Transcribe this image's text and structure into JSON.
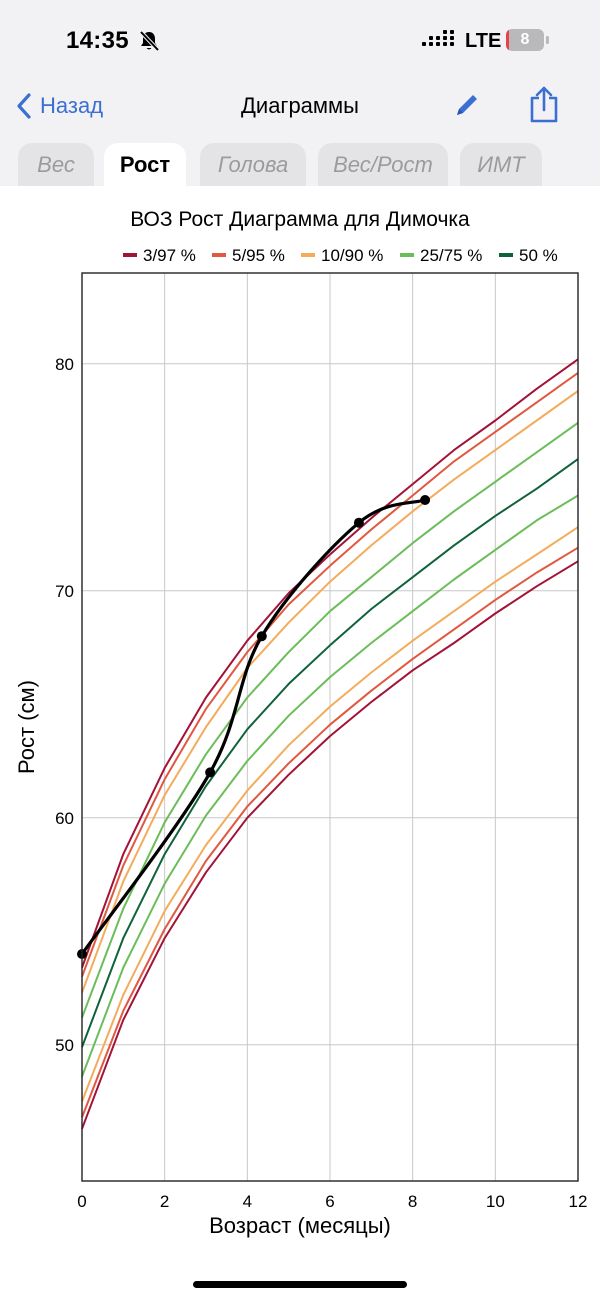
{
  "status_bar": {
    "time": "14:35",
    "network": "LTE",
    "battery_level": "8",
    "battery_fraction": 0.08,
    "battery_color": "#e8414a"
  },
  "nav": {
    "back_label": "Назад",
    "title": "Диаграммы",
    "accent_color": "#3b6fd4"
  },
  "tabs": [
    {
      "label": "Вес",
      "active": false
    },
    {
      "label": "Рост",
      "active": true
    },
    {
      "label": "Голова",
      "active": false
    },
    {
      "label": "Вес/Рост",
      "active": false
    },
    {
      "label": "ИМТ",
      "active": false
    }
  ],
  "chart_data": {
    "type": "line",
    "title": "ВОЗ Рост Диаграмма для Димочка",
    "xlabel": "Возраст (месяцы)",
    "ylabel": "Рост (см)",
    "xlim": [
      0,
      12
    ],
    "ylim": [
      44,
      84
    ],
    "xticks": [
      0,
      2,
      4,
      6,
      8,
      10,
      12
    ],
    "yticks": [
      50,
      60,
      70,
      80
    ],
    "grid": true,
    "legend_position": "top",
    "legend": [
      {
        "label": "3/97 %",
        "color": "#a31237"
      },
      {
        "label": "5/95 %",
        "color": "#e0583f"
      },
      {
        "label": "10/90 %",
        "color": "#f4ab5b"
      },
      {
        "label": "25/75 %",
        "color": "#6bbd5a"
      },
      {
        "label": "50 %",
        "color": "#10623a"
      }
    ],
    "x": [
      0,
      1,
      2,
      3,
      4,
      5,
      6,
      7,
      8,
      9,
      10,
      11,
      12
    ],
    "series": [
      {
        "name": "3 %",
        "color": "#a31237",
        "values": [
          46.3,
          51.1,
          54.7,
          57.6,
          60.0,
          61.9,
          63.6,
          65.1,
          66.5,
          67.7,
          69.0,
          70.2,
          71.3
        ]
      },
      {
        "name": "5 %",
        "color": "#e0583f",
        "values": [
          46.8,
          51.5,
          55.1,
          58.1,
          60.5,
          62.4,
          64.1,
          65.6,
          67.0,
          68.3,
          69.6,
          70.8,
          71.9
        ]
      },
      {
        "name": "10 %",
        "color": "#f4ab5b",
        "values": [
          47.5,
          52.2,
          55.9,
          58.8,
          61.2,
          63.2,
          64.9,
          66.4,
          67.8,
          69.1,
          70.4,
          71.6,
          72.8
        ]
      },
      {
        "name": "25 %",
        "color": "#6bbd5a",
        "values": [
          48.6,
          53.4,
          57.1,
          60.1,
          62.5,
          64.5,
          66.2,
          67.7,
          69.1,
          70.5,
          71.8,
          73.1,
          74.2
        ]
      },
      {
        "name": "50 %",
        "color": "#10623a",
        "values": [
          49.9,
          54.7,
          58.4,
          61.4,
          63.9,
          65.9,
          67.6,
          69.2,
          70.6,
          72.0,
          73.3,
          74.5,
          75.8
        ]
      },
      {
        "name": "75 %",
        "color": "#6bbd5a",
        "values": [
          51.2,
          56.0,
          59.8,
          62.8,
          65.3,
          67.3,
          69.1,
          70.6,
          72.1,
          73.5,
          74.8,
          76.1,
          77.4
        ]
      },
      {
        "name": "90 %",
        "color": "#f4ab5b",
        "values": [
          52.3,
          57.2,
          61.0,
          64.0,
          66.6,
          68.6,
          70.4,
          72.0,
          73.5,
          74.9,
          76.2,
          77.5,
          78.8
        ]
      },
      {
        "name": "95 %",
        "color": "#e0583f",
        "values": [
          53.0,
          57.9,
          61.7,
          64.8,
          67.3,
          69.4,
          71.1,
          72.7,
          74.2,
          75.7,
          77.0,
          78.3,
          79.6
        ]
      },
      {
        "name": "97 %",
        "color": "#a31237",
        "values": [
          53.4,
          58.4,
          62.2,
          65.3,
          67.8,
          69.9,
          71.6,
          73.2,
          74.7,
          76.2,
          77.5,
          78.9,
          80.2
        ]
      }
    ],
    "child": {
      "name": "Димочка",
      "color": "#000000",
      "points": [
        {
          "x": 0,
          "y": 54
        },
        {
          "x": 3.1,
          "y": 62
        },
        {
          "x": 4.35,
          "y": 68
        },
        {
          "x": 6.7,
          "y": 73
        },
        {
          "x": 8.3,
          "y": 74
        }
      ]
    }
  }
}
